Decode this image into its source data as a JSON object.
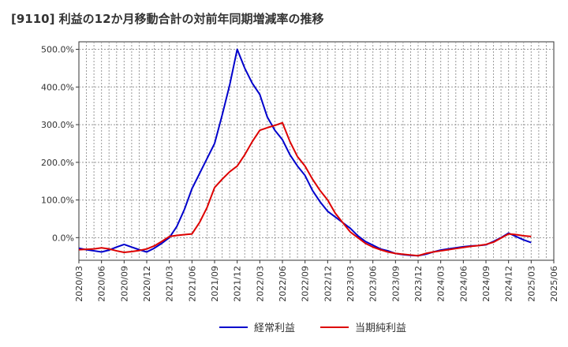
{
  "chart_data": {
    "type": "line",
    "title": "[9110]  利益の12か月移動合計の対前年同期増減率の推移",
    "xlabel": "",
    "ylabel": "",
    "ylim": [
      -60,
      520
    ],
    "yticks": [
      0,
      100,
      200,
      300,
      400,
      500
    ],
    "ytick_labels": [
      "0.0%",
      "100.0%",
      "200.0%",
      "300.0%",
      "400.0%",
      "500.0%"
    ],
    "x_ticks": [
      "2020/03",
      "2020/06",
      "2020/09",
      "2020/12",
      "2021/03",
      "2021/06",
      "2021/09",
      "2021/12",
      "2022/03",
      "2022/06",
      "2022/09",
      "2022/12",
      "2023/03",
      "2023/06",
      "2023/09",
      "2023/12",
      "2024/03",
      "2024/06",
      "2024/09",
      "2024/12",
      "2025/03",
      "2025/06"
    ],
    "x": [
      "2020/03",
      "2020/04",
      "2020/05",
      "2020/06",
      "2020/07",
      "2020/08",
      "2020/09",
      "2020/10",
      "2020/11",
      "2020/12",
      "2021/01",
      "2021/02",
      "2021/03",
      "2021/04",
      "2021/05",
      "2021/06",
      "2021/07",
      "2021/08",
      "2021/09",
      "2021/10",
      "2021/11",
      "2021/12",
      "2022/01",
      "2022/02",
      "2022/03",
      "2022/04",
      "2022/05",
      "2022/06",
      "2022/07",
      "2022/08",
      "2022/09",
      "2022/10",
      "2022/11",
      "2022/12",
      "2023/01",
      "2023/02",
      "2023/03",
      "2023/04",
      "2023/05",
      "2023/06",
      "2023/07",
      "2023/08",
      "2023/09",
      "2023/10",
      "2023/11",
      "2023/12",
      "2024/01",
      "2024/02",
      "2024/03",
      "2024/04",
      "2024/05",
      "2024/06",
      "2024/07",
      "2024/08",
      "2024/09",
      "2024/10",
      "2024/11",
      "2024/12",
      "2025/01",
      "2025/02",
      "2025/03"
    ],
    "grid": true,
    "legend_position": "bottom",
    "series": [
      {
        "name": "経常利益",
        "color": "#0000cc",
        "values": [
          -28,
          -32,
          -35,
          -38,
          -33,
          -25,
          -18,
          -25,
          -32,
          -38,
          -28,
          -15,
          0,
          30,
          75,
          130,
          170,
          210,
          250,
          325,
          405,
          500,
          450,
          410,
          380,
          320,
          285,
          260,
          220,
          190,
          165,
          125,
          95,
          70,
          55,
          40,
          25,
          5,
          -10,
          -20,
          -30,
          -35,
          -42,
          -45,
          -47,
          -48,
          -44,
          -38,
          -33,
          -30,
          -27,
          -24,
          -22,
          -21,
          -19,
          -10,
          0,
          12,
          3,
          -6,
          -13
        ]
      },
      {
        "name": "当期純利益",
        "color": "#dd0000",
        "values": [
          -32,
          -31,
          -30,
          -27,
          -30,
          -35,
          -39,
          -37,
          -34,
          -30,
          -22,
          -10,
          3,
          6,
          8,
          10,
          40,
          80,
          133,
          155,
          175,
          190,
          220,
          255,
          285,
          292,
          298,
          305,
          255,
          215,
          190,
          155,
          125,
          100,
          65,
          40,
          15,
          0,
          -15,
          -25,
          -32,
          -38,
          -42,
          -44,
          -46,
          -48,
          -42,
          -38,
          -35,
          -32,
          -29,
          -26,
          -23,
          -21,
          -18,
          -12,
          -1,
          10,
          8,
          5,
          3
        ]
      }
    ]
  }
}
